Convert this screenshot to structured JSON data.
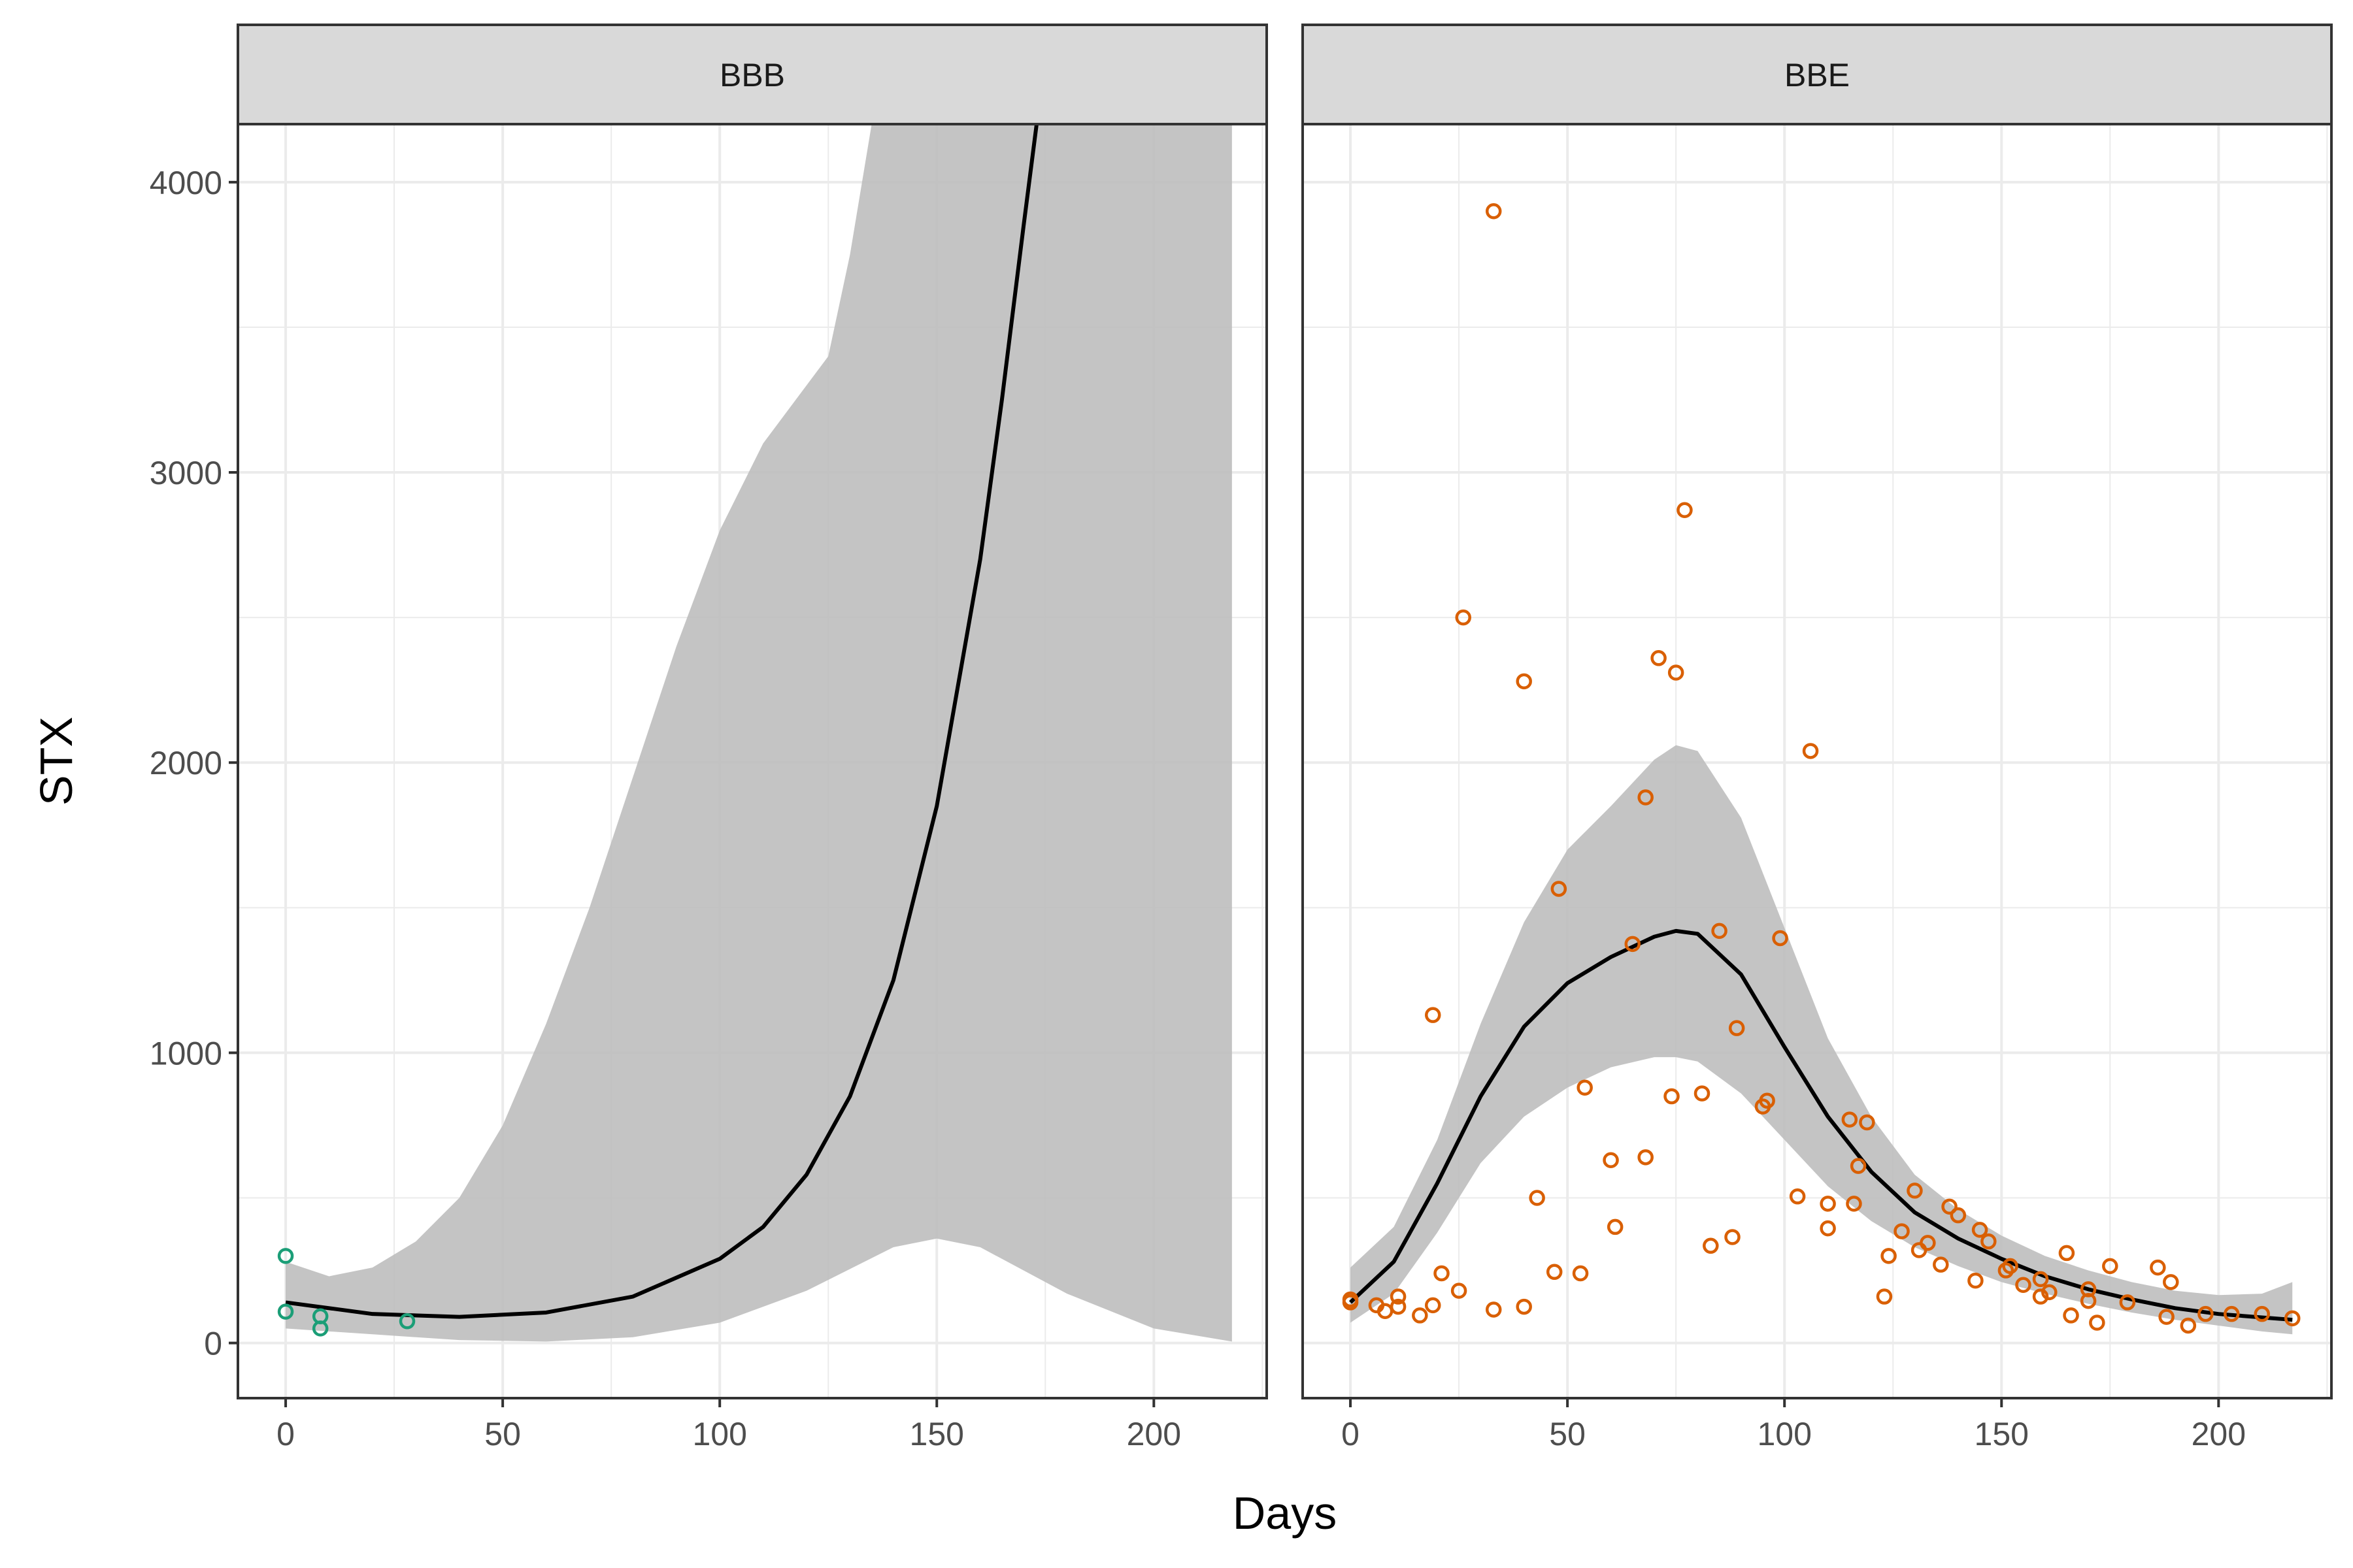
{
  "chart_data": {
    "type": "scatter",
    "xlabel": "Days",
    "ylabel": "STX",
    "xlim": [
      -11,
      226
    ],
    "ylim": [
      -190,
      4200
    ],
    "x_ticks": [
      0,
      50,
      100,
      150,
      200
    ],
    "y_ticks": [
      0,
      1000,
      2000,
      3000,
      4000
    ],
    "colors": {
      "BBB_points": "#1b9e77",
      "BBE_points": "#d95f02",
      "ribbon": "#bebebe",
      "fit_line": "#000000",
      "strip_fill": "#d9d9d9",
      "grid": "#ebebeb"
    },
    "panels": [
      {
        "name": "BBB",
        "points": [
          {
            "x": 0,
            "y": 300
          },
          {
            "x": 0,
            "y": 108
          },
          {
            "x": 8,
            "y": 92
          },
          {
            "x": 8,
            "y": 50
          },
          {
            "x": 28,
            "y": 75
          }
        ],
        "fit": [
          {
            "x": 0,
            "y": 140
          },
          {
            "x": 20,
            "y": 100
          },
          {
            "x": 40,
            "y": 90
          },
          {
            "x": 60,
            "y": 105
          },
          {
            "x": 80,
            "y": 160
          },
          {
            "x": 100,
            "y": 290
          },
          {
            "x": 110,
            "y": 400
          },
          {
            "x": 120,
            "y": 580
          },
          {
            "x": 130,
            "y": 850
          },
          {
            "x": 140,
            "y": 1250
          },
          {
            "x": 150,
            "y": 1850
          },
          {
            "x": 160,
            "y": 2700
          },
          {
            "x": 165,
            "y": 3250
          },
          {
            "x": 170,
            "y": 3850
          },
          {
            "x": 173,
            "y": 4200
          }
        ],
        "band_upper": [
          {
            "x": 0,
            "y": 280
          },
          {
            "x": 10,
            "y": 230
          },
          {
            "x": 20,
            "y": 260
          },
          {
            "x": 30,
            "y": 350
          },
          {
            "x": 40,
            "y": 500
          },
          {
            "x": 50,
            "y": 750
          },
          {
            "x": 60,
            "y": 1100
          },
          {
            "x": 70,
            "y": 1500
          },
          {
            "x": 80,
            "y": 1950
          },
          {
            "x": 90,
            "y": 2400
          },
          {
            "x": 100,
            "y": 2800
          },
          {
            "x": 110,
            "y": 3100
          },
          {
            "x": 120,
            "y": 3300
          },
          {
            "x": 125,
            "y": 3400
          },
          {
            "x": 130,
            "y": 3750
          },
          {
            "x": 135,
            "y": 4200
          },
          {
            "x": 218,
            "y": 4200
          }
        ],
        "band_lower": [
          {
            "x": 0,
            "y": 50
          },
          {
            "x": 20,
            "y": 30
          },
          {
            "x": 40,
            "y": 10
          },
          {
            "x": 60,
            "y": 5
          },
          {
            "x": 80,
            "y": 20
          },
          {
            "x": 100,
            "y": 70
          },
          {
            "x": 120,
            "y": 180
          },
          {
            "x": 140,
            "y": 330
          },
          {
            "x": 150,
            "y": 360
          },
          {
            "x": 160,
            "y": 330
          },
          {
            "x": 180,
            "y": 170
          },
          {
            "x": 200,
            "y": 50
          },
          {
            "x": 218,
            "y": 5
          }
        ]
      },
      {
        "name": "BBE",
        "points": [
          {
            "x": 0,
            "y": 140
          },
          {
            "x": 0,
            "y": 150
          },
          {
            "x": 6,
            "y": 130
          },
          {
            "x": 8,
            "y": 110
          },
          {
            "x": 11,
            "y": 160
          },
          {
            "x": 11,
            "y": 125
          },
          {
            "x": 16,
            "y": 95
          },
          {
            "x": 19,
            "y": 130
          },
          {
            "x": 19,
            "y": 1130
          },
          {
            "x": 21,
            "y": 240
          },
          {
            "x": 25,
            "y": 180
          },
          {
            "x": 26,
            "y": 2500
          },
          {
            "x": 33,
            "y": 3900
          },
          {
            "x": 33,
            "y": 115
          },
          {
            "x": 40,
            "y": 2280
          },
          {
            "x": 40,
            "y": 125
          },
          {
            "x": 43,
            "y": 500
          },
          {
            "x": 47,
            "y": 245
          },
          {
            "x": 48,
            "y": 1565
          },
          {
            "x": 53,
            "y": 240
          },
          {
            "x": 54,
            "y": 880
          },
          {
            "x": 60,
            "y": 630
          },
          {
            "x": 61,
            "y": 400
          },
          {
            "x": 65,
            "y": 1375
          },
          {
            "x": 68,
            "y": 1880
          },
          {
            "x": 68,
            "y": 640
          },
          {
            "x": 71,
            "y": 2360
          },
          {
            "x": 74,
            "y": 850
          },
          {
            "x": 75,
            "y": 2310
          },
          {
            "x": 77,
            "y": 2870
          },
          {
            "x": 81,
            "y": 860
          },
          {
            "x": 83,
            "y": 335
          },
          {
            "x": 85,
            "y": 1420
          },
          {
            "x": 88,
            "y": 365
          },
          {
            "x": 89,
            "y": 1085
          },
          {
            "x": 95,
            "y": 815
          },
          {
            "x": 96,
            "y": 835
          },
          {
            "x": 99,
            "y": 1395
          },
          {
            "x": 103,
            "y": 505
          },
          {
            "x": 106,
            "y": 2040
          },
          {
            "x": 110,
            "y": 480
          },
          {
            "x": 110,
            "y": 395
          },
          {
            "x": 115,
            "y": 770
          },
          {
            "x": 116,
            "y": 480
          },
          {
            "x": 117,
            "y": 610
          },
          {
            "x": 119,
            "y": 760
          },
          {
            "x": 123,
            "y": 160
          },
          {
            "x": 124,
            "y": 300
          },
          {
            "x": 127,
            "y": 385
          },
          {
            "x": 130,
            "y": 525
          },
          {
            "x": 131,
            "y": 320
          },
          {
            "x": 133,
            "y": 345
          },
          {
            "x": 136,
            "y": 270
          },
          {
            "x": 138,
            "y": 470
          },
          {
            "x": 140,
            "y": 440
          },
          {
            "x": 144,
            "y": 215
          },
          {
            "x": 145,
            "y": 390
          },
          {
            "x": 147,
            "y": 350
          },
          {
            "x": 151,
            "y": 250
          },
          {
            "x": 152,
            "y": 265
          },
          {
            "x": 155,
            "y": 200
          },
          {
            "x": 159,
            "y": 160
          },
          {
            "x": 159,
            "y": 220
          },
          {
            "x": 161,
            "y": 175
          },
          {
            "x": 165,
            "y": 310
          },
          {
            "x": 166,
            "y": 95
          },
          {
            "x": 170,
            "y": 185
          },
          {
            "x": 170,
            "y": 145
          },
          {
            "x": 172,
            "y": 70
          },
          {
            "x": 175,
            "y": 265
          },
          {
            "x": 179,
            "y": 140
          },
          {
            "x": 186,
            "y": 260
          },
          {
            "x": 188,
            "y": 90
          },
          {
            "x": 189,
            "y": 210
          },
          {
            "x": 193,
            "y": 60
          },
          {
            "x": 197,
            "y": 100
          },
          {
            "x": 203,
            "y": 100
          },
          {
            "x": 210,
            "y": 100
          },
          {
            "x": 217,
            "y": 85
          }
        ],
        "fit": [
          {
            "x": 0,
            "y": 140
          },
          {
            "x": 10,
            "y": 280
          },
          {
            "x": 20,
            "y": 550
          },
          {
            "x": 30,
            "y": 850
          },
          {
            "x": 40,
            "y": 1090
          },
          {
            "x": 50,
            "y": 1240
          },
          {
            "x": 60,
            "y": 1330
          },
          {
            "x": 70,
            "y": 1400
          },
          {
            "x": 75,
            "y": 1420
          },
          {
            "x": 80,
            "y": 1410
          },
          {
            "x": 90,
            "y": 1270
          },
          {
            "x": 100,
            "y": 1020
          },
          {
            "x": 110,
            "y": 780
          },
          {
            "x": 120,
            "y": 590
          },
          {
            "x": 130,
            "y": 450
          },
          {
            "x": 140,
            "y": 360
          },
          {
            "x": 150,
            "y": 290
          },
          {
            "x": 160,
            "y": 230
          },
          {
            "x": 170,
            "y": 185
          },
          {
            "x": 180,
            "y": 150
          },
          {
            "x": 190,
            "y": 120
          },
          {
            "x": 200,
            "y": 100
          },
          {
            "x": 210,
            "y": 88
          },
          {
            "x": 217,
            "y": 80
          }
        ],
        "band_upper": [
          {
            "x": 0,
            "y": 260
          },
          {
            "x": 10,
            "y": 400
          },
          {
            "x": 20,
            "y": 700
          },
          {
            "x": 30,
            "y": 1100
          },
          {
            "x": 40,
            "y": 1450
          },
          {
            "x": 50,
            "y": 1700
          },
          {
            "x": 60,
            "y": 1850
          },
          {
            "x": 70,
            "y": 2010
          },
          {
            "x": 75,
            "y": 2060
          },
          {
            "x": 80,
            "y": 2040
          },
          {
            "x": 90,
            "y": 1810
          },
          {
            "x": 100,
            "y": 1430
          },
          {
            "x": 110,
            "y": 1050
          },
          {
            "x": 120,
            "y": 780
          },
          {
            "x": 130,
            "y": 580
          },
          {
            "x": 140,
            "y": 460
          },
          {
            "x": 150,
            "y": 370
          },
          {
            "x": 160,
            "y": 300
          },
          {
            "x": 170,
            "y": 250
          },
          {
            "x": 180,
            "y": 210
          },
          {
            "x": 190,
            "y": 180
          },
          {
            "x": 200,
            "y": 165
          },
          {
            "x": 210,
            "y": 170
          },
          {
            "x": 217,
            "y": 210
          }
        ],
        "band_lower": [
          {
            "x": 0,
            "y": 70
          },
          {
            "x": 10,
            "y": 170
          },
          {
            "x": 20,
            "y": 380
          },
          {
            "x": 30,
            "y": 620
          },
          {
            "x": 40,
            "y": 780
          },
          {
            "x": 50,
            "y": 880
          },
          {
            "x": 60,
            "y": 950
          },
          {
            "x": 70,
            "y": 985
          },
          {
            "x": 75,
            "y": 985
          },
          {
            "x": 80,
            "y": 970
          },
          {
            "x": 90,
            "y": 860
          },
          {
            "x": 100,
            "y": 700
          },
          {
            "x": 110,
            "y": 540
          },
          {
            "x": 120,
            "y": 420
          },
          {
            "x": 130,
            "y": 330
          },
          {
            "x": 140,
            "y": 265
          },
          {
            "x": 150,
            "y": 210
          },
          {
            "x": 160,
            "y": 170
          },
          {
            "x": 170,
            "y": 135
          },
          {
            "x": 180,
            "y": 105
          },
          {
            "x": 190,
            "y": 80
          },
          {
            "x": 200,
            "y": 60
          },
          {
            "x": 210,
            "y": 40
          },
          {
            "x": 217,
            "y": 30
          }
        ]
      }
    ]
  }
}
